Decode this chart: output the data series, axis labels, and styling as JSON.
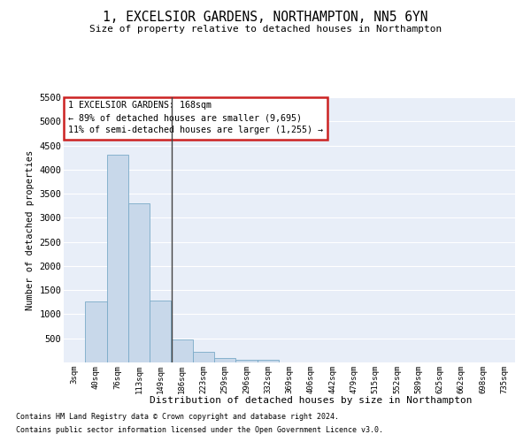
{
  "title": "1, EXCELSIOR GARDENS, NORTHAMPTON, NN5 6YN",
  "subtitle": "Size of property relative to detached houses in Northampton",
  "xlabel": "Distribution of detached houses by size in Northampton",
  "ylabel": "Number of detached properties",
  "bar_labels": [
    "3sqm",
    "40sqm",
    "76sqm",
    "113sqm",
    "149sqm",
    "186sqm",
    "223sqm",
    "259sqm",
    "296sqm",
    "332sqm",
    "369sqm",
    "406sqm",
    "442sqm",
    "479sqm",
    "515sqm",
    "552sqm",
    "589sqm",
    "625sqm",
    "662sqm",
    "698sqm",
    "735sqm"
  ],
  "bar_heights": [
    0,
    1270,
    4300,
    3300,
    1280,
    480,
    215,
    90,
    60,
    55,
    0,
    0,
    0,
    0,
    0,
    0,
    0,
    0,
    0,
    0,
    0
  ],
  "bar_color": "#c8d8ea",
  "bar_edge_color": "#7aaac8",
  "annotation_line": "1 EXCELSIOR GARDENS: 168sqm",
  "annotation_smaller": "← 89% of detached houses are smaller (9,695)",
  "annotation_larger": "11% of semi-detached houses are larger (1,255) →",
  "annotation_box_facecolor": "#ffffff",
  "annotation_box_edgecolor": "#cc2222",
  "ylim": [
    0,
    5500
  ],
  "yticks": [
    0,
    500,
    1000,
    1500,
    2000,
    2500,
    3000,
    3500,
    4000,
    4500,
    5000,
    5500
  ],
  "bg_color": "#ffffff",
  "plot_bg_color": "#e8eef8",
  "grid_color": "#ffffff",
  "footer1": "Contains HM Land Registry data © Crown copyright and database right 2024.",
  "footer2": "Contains public sector information licensed under the Open Government Licence v3.0."
}
